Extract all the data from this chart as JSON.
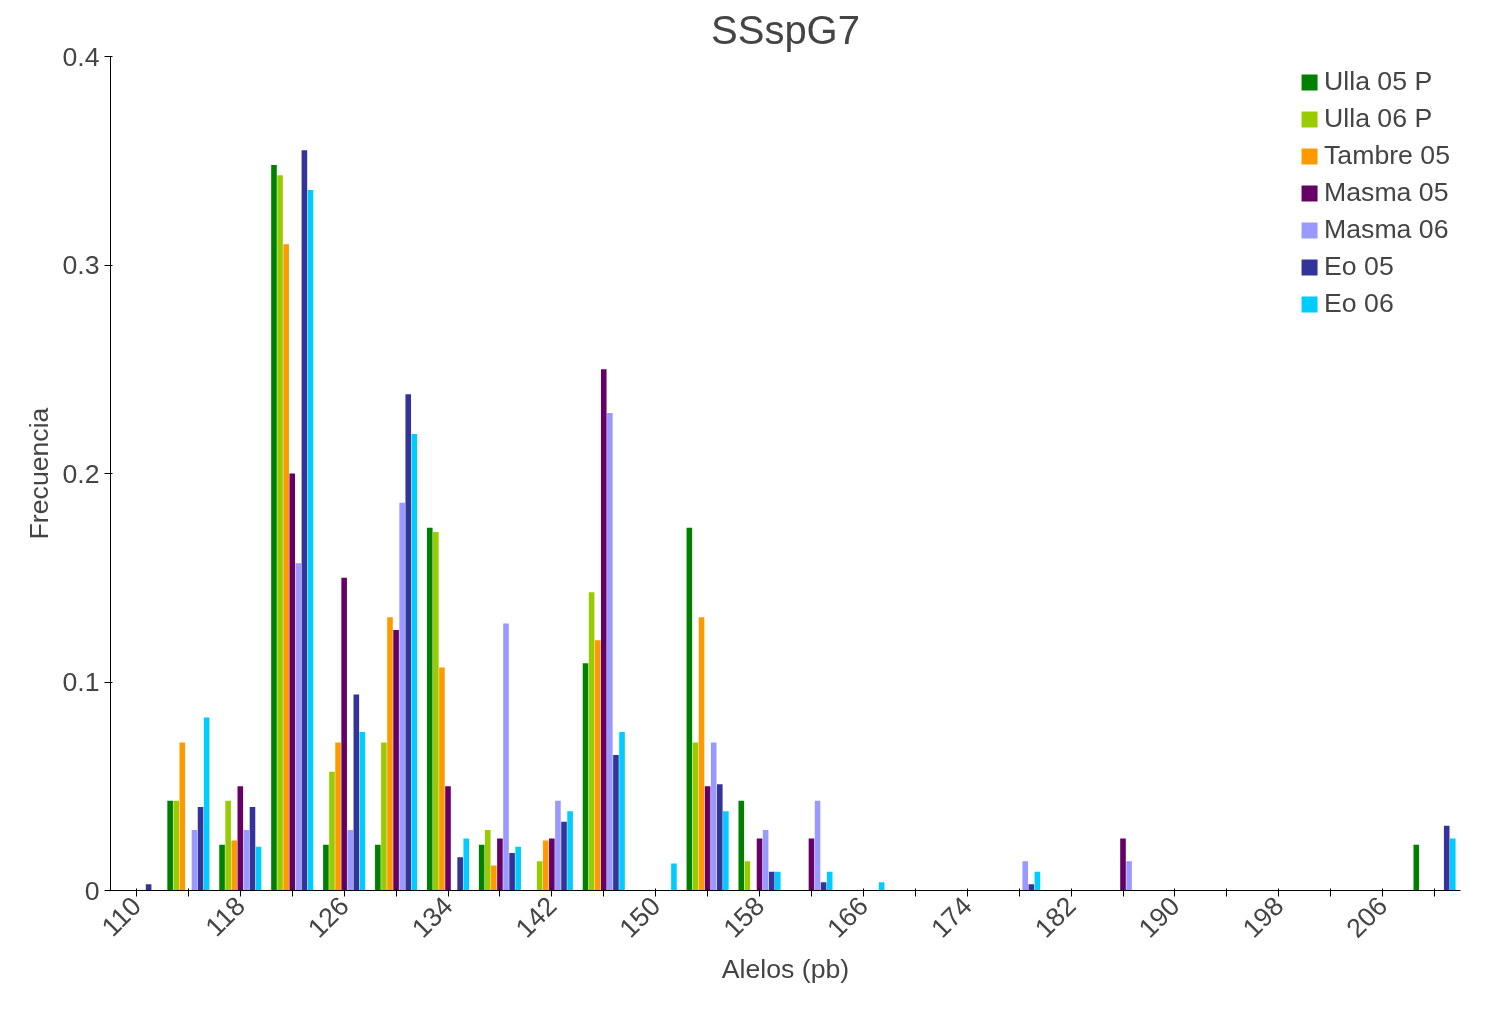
{
  "chart_data": {
    "type": "bar",
    "title": "SSspG7",
    "xlabel": "Alelos (pb)",
    "ylabel": "Frecuencia",
    "categories": [
      "110",
      null,
      "118",
      null,
      "126",
      null,
      "134",
      null,
      "142",
      null,
      "150",
      null,
      "158",
      null,
      "166",
      null,
      "174",
      null,
      "182",
      null,
      "190",
      null,
      "198",
      null,
      "206",
      null
    ],
    "ylim": [
      0,
      0.4
    ],
    "yticks": [
      0,
      0.1,
      0.2,
      0.3,
      0.4
    ],
    "grid": false,
    "legend": "top right",
    "series": [
      {
        "name": "Ulla 05 P",
        "color": "#008000",
        "values": [
          0,
          0.043,
          0.022,
          0.348,
          0.022,
          0.022,
          0.174,
          0.022,
          0,
          0.109,
          0,
          0.174,
          0.043,
          0,
          0,
          0,
          0,
          0,
          0,
          0,
          0,
          0,
          0,
          0,
          0,
          0.022
        ]
      },
      {
        "name": "Ulla 06 P",
        "color": "#99cc00",
        "values": [
          0,
          0.043,
          0.043,
          0.343,
          0.057,
          0.071,
          0.172,
          0.029,
          0.014,
          0.143,
          0,
          0.071,
          0.014,
          0,
          0,
          0,
          0,
          0,
          0,
          0,
          0,
          0,
          0,
          0,
          0,
          0
        ]
      },
      {
        "name": "Tambre 05",
        "color": "#ff9900",
        "values": [
          0,
          0.071,
          0.024,
          0.31,
          0.071,
          0.131,
          0.107,
          0.012,
          0.024,
          0.12,
          0,
          0.131,
          0,
          0,
          0,
          0,
          0,
          0,
          0,
          0,
          0,
          0,
          0,
          0,
          0,
          0
        ]
      },
      {
        "name": "Masma 05",
        "color": "#660066",
        "values": [
          0,
          0,
          0.05,
          0.2,
          0.15,
          0.125,
          0.05,
          0.025,
          0.025,
          0.25,
          0,
          0.05,
          0.025,
          0.025,
          0,
          0,
          0,
          0,
          0,
          0.025,
          0,
          0,
          0,
          0,
          0,
          0
        ]
      },
      {
        "name": "Masma 06",
        "color": "#9999ff",
        "values": [
          0,
          0.029,
          0.029,
          0.157,
          0.029,
          0.186,
          0,
          0.128,
          0.043,
          0.229,
          0,
          0.071,
          0.029,
          0.043,
          0,
          0,
          0,
          0.014,
          0,
          0.014,
          0,
          0,
          0,
          0,
          0,
          0
        ]
      },
      {
        "name": "Eo 05",
        "color": "#333399",
        "values": [
          0.003,
          0.04,
          0.04,
          0.355,
          0.094,
          0.238,
          0.016,
          0.018,
          0.033,
          0.065,
          0,
          0.051,
          0.009,
          0.004,
          0,
          0,
          0,
          0.003,
          0,
          0,
          0,
          0,
          0,
          0,
          0,
          0.031
        ]
      },
      {
        "name": "Eo 06",
        "color": "#00ccff",
        "values": [
          0,
          0.083,
          0.021,
          0.336,
          0.076,
          0.219,
          0.025,
          0.021,
          0.038,
          0.076,
          0.013,
          0.038,
          0.009,
          0.009,
          0.004,
          0,
          0,
          0.009,
          0,
          0,
          0,
          0,
          0,
          0,
          0,
          0.025
        ]
      }
    ]
  }
}
